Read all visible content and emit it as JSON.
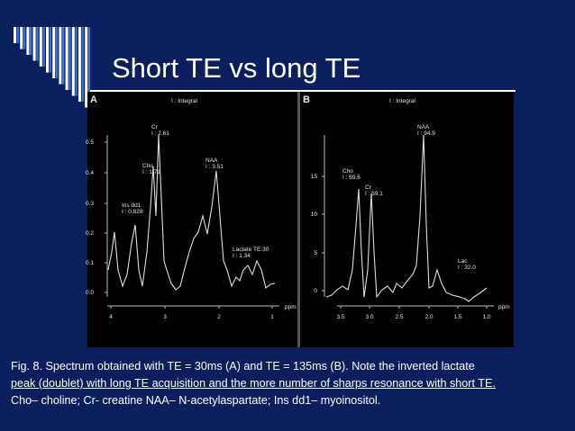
{
  "slide": {
    "title": "Short TE vs long TE",
    "caption": [
      "Fig. 8. Spectrum obtained with TE = 30ms (A) and TE = 135ms (B). Note the inverted lactate",
      "peak (doublet) with long TE acquisition and the more number of sharps resonance with short TE.",
      "Cho– choline; Cr- creatine NAA– N-acetylaspartate; Ins dd1– myoinositol."
    ]
  },
  "figure": {
    "panel_a": {
      "label": "A",
      "legend": "I : Integral",
      "y_ticks": [
        "0.5",
        "0.4",
        "0.3",
        "0.2",
        "0.1",
        "0.0"
      ],
      "x_ticks": [
        "4",
        "3",
        "2",
        "1"
      ],
      "x_unit": "ppm",
      "peaks": [
        {
          "name": "Cr",
          "integral": "I : 2.61"
        },
        {
          "name": "Cho",
          "integral": "I : 1.71"
        },
        {
          "name": "Ins dd1",
          "integral": "I : 0.828"
        },
        {
          "name": "NAA",
          "integral": "I : 3.51"
        },
        {
          "name": "Lactate TE:30",
          "integral": "I : 1.34"
        }
      ]
    },
    "panel_b": {
      "label": "B",
      "legend": "I : Integral",
      "y_ticks": [
        "15",
        "10",
        "5",
        "0"
      ],
      "x_ticks": [
        "3.5",
        "3.0",
        "2.5",
        "2.0",
        "1.5",
        "1.0"
      ],
      "x_unit": "ppm",
      "peaks": [
        {
          "name": "NAA",
          "integral": "I : 94.9"
        },
        {
          "name": "Cho",
          "integral": "I : 69.6"
        },
        {
          "name": "Cr",
          "integral": "I : 59.1"
        },
        {
          "name": "Lac",
          "integral": "I : 32.0"
        }
      ]
    }
  }
}
